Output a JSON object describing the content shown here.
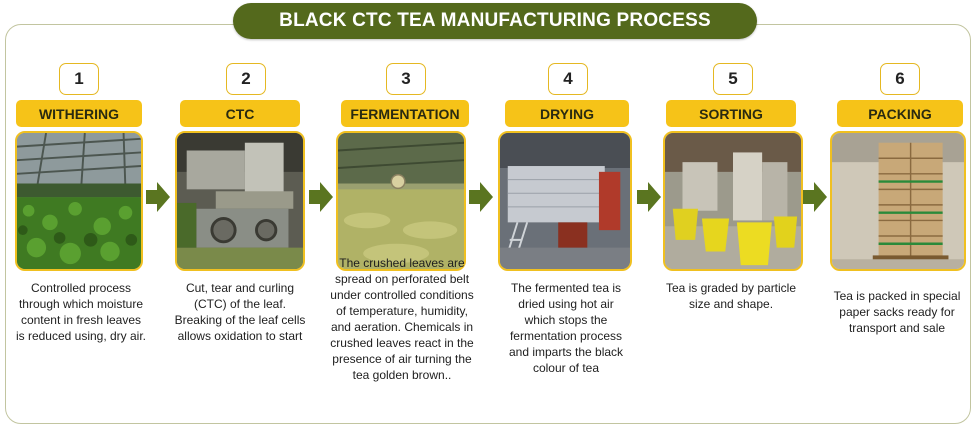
{
  "title": "BLACK CTC  TEA MANUFACTURING PROCESS",
  "colors": {
    "banner": "#54691c",
    "label_fill": "#f6c318",
    "arrow": "#5a7520",
    "number_border": "#e5b822"
  },
  "steps": [
    {
      "number": "1",
      "label": "WITHERING",
      "description": "Controlled process through which moisture content in fresh leaves is reduced using, dry air."
    },
    {
      "number": "2",
      "label": "CTC",
      "description": "Cut, tear and curling (CTC) of the leaf. Breaking of the leaf cells allows oxidation to start"
    },
    {
      "number": "3",
      "label": "FERMENTATION",
      "description": "The crushed leaves are spread on perforated belt under controlled conditions of temperature, humidity, and aeration. Chemicals in crushed leaves react in the presence of air turning the tea golden brown.."
    },
    {
      "number": "4",
      "label": "DRYING",
      "description": "The fermented tea is dried using hot air which stops the fermentation process and imparts the black colour of tea"
    },
    {
      "number": "5",
      "label": "SORTING",
      "description": "Tea is graded by particle size and shape."
    },
    {
      "number": "6",
      "label": "PACKING",
      "description": "Tea is packed in special paper sacks ready for transport and sale"
    }
  ]
}
